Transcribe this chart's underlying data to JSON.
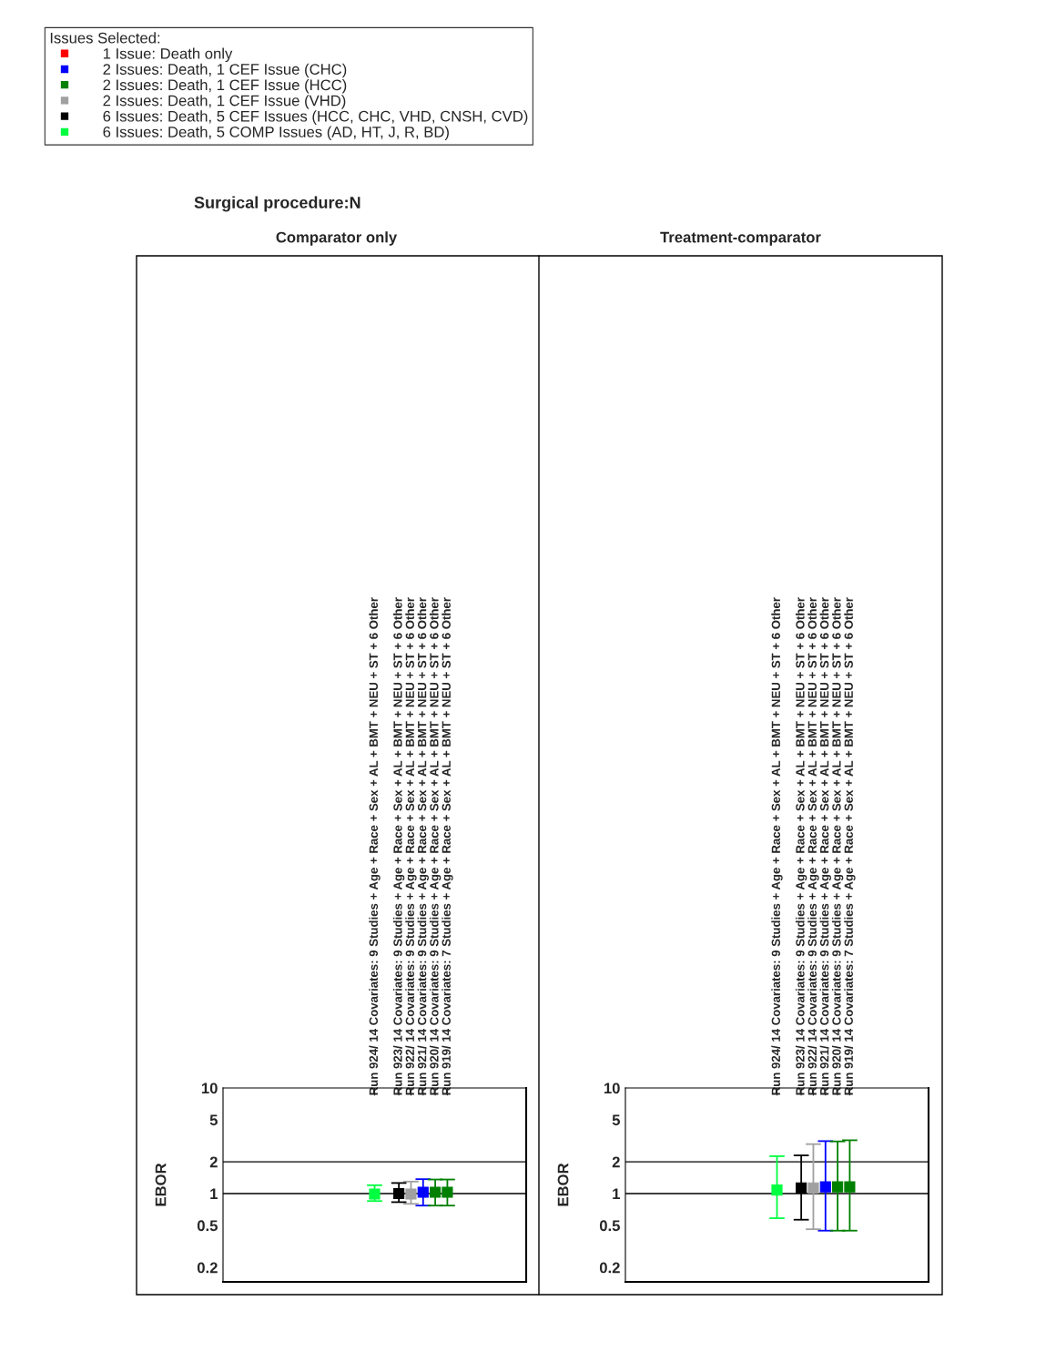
{
  "chart_data": [
    {
      "type": "scatter",
      "title": "Comparator only",
      "annotations": [
        "Surgical procedure:N"
      ],
      "ylabel": "EBOR",
      "legend_title": "Issues Selected:",
      "legend": "top left",
      "marker": "square",
      "log": "y",
      "categories": [
        null,
        null,
        null,
        null,
        null,
        null,
        null,
        null,
        null,
        null,
        null,
        null,
        "Run 924/ 14 Covariates: 9 Studies + Age + Race + Sex + AL + BMT + NEU + ST + 6 Other",
        null,
        "Run 923/ 14 Covariates: 9 Studies + Age + Race + Sex + AL + BMT + NEU + ST + 6 Other",
        "Run 922/ 14 Covariates: 9 Studies + Age + Race + Sex + AL + BMT + NEU + ST + 6 Other",
        "Run 921/ 14 Covariates: 9 Studies + Age + Race + Sex + AL + BMT + NEU + ST + 6 Other",
        "Run 920/ 14 Covariates: 9 Studies + Age + Race + Sex + AL + BMT + NEU + ST + 6 Other",
        "Run 919/ 14 Covariates: 7 Studies + Age + Race + Sex + AL + BMT + NEU + ST + 6 Other",
        null,
        null,
        null,
        null,
        null,
        null
      ],
      "ylim": [
        0.146,
        10
      ],
      "yticks": [
        0.2,
        0.5,
        1,
        2,
        5,
        10
      ],
      "ref_lines": [
        {
          "axis": "y",
          "value": 1,
          "color": "#000000"
        },
        {
          "axis": "y",
          "value": 2,
          "color": "#000000"
        }
      ],
      "series": [
        {
          "name": "1 Issue: Death only",
          "color": "#ff0000",
          "values": [
            null,
            null,
            null,
            null,
            null,
            null,
            null,
            null,
            null,
            null,
            null,
            null,
            null,
            null,
            null,
            null,
            null,
            null,
            null,
            null,
            null,
            null,
            null,
            null,
            null
          ]
        },
        {
          "name": "2 Issues: Death, 1 CEF Issue (CHC)",
          "color": "#0000ff",
          "values": [
            null,
            null,
            null,
            null,
            null,
            null,
            null,
            null,
            null,
            null,
            null,
            null,
            null,
            null,
            null,
            null,
            1.03,
            null,
            null,
            null,
            null,
            null,
            null,
            null,
            null
          ],
          "errors": [
            null,
            null,
            null,
            null,
            null,
            null,
            null,
            null,
            null,
            null,
            null,
            null,
            null,
            null,
            null,
            null,
            [
              0.77,
              1.37
            ],
            null,
            null,
            null,
            null,
            null,
            null,
            null,
            null
          ]
        },
        {
          "name": "2 Issues: Death, 1 CEF Issue (HCC)",
          "color": "#008000",
          "values": [
            null,
            null,
            null,
            null,
            null,
            null,
            null,
            null,
            null,
            null,
            null,
            null,
            null,
            null,
            null,
            null,
            null,
            1.03,
            1.03,
            null,
            null,
            null,
            null,
            null,
            null
          ],
          "errors": [
            null,
            null,
            null,
            null,
            null,
            null,
            null,
            null,
            null,
            null,
            null,
            null,
            null,
            null,
            null,
            null,
            null,
            [
              0.77,
              1.36
            ],
            [
              0.77,
              1.36
            ],
            null,
            null,
            null,
            null,
            null,
            null
          ]
        },
        {
          "name": "2 Issues: Death, 1 CEF Issue (VHD)",
          "color": "#a0a0a0",
          "values": [
            null,
            null,
            null,
            null,
            null,
            null,
            null,
            null,
            null,
            null,
            null,
            null,
            null,
            null,
            null,
            0.99,
            null,
            null,
            null,
            null,
            null,
            null,
            null,
            null,
            null
          ],
          "errors": [
            null,
            null,
            null,
            null,
            null,
            null,
            null,
            null,
            null,
            null,
            null,
            null,
            null,
            null,
            null,
            [
              0.8,
              1.3
            ],
            null,
            null,
            null,
            null,
            null,
            null,
            null,
            null,
            null
          ]
        },
        {
          "name": "6 Issues: Death, 5 CEF Issues (HCC, CHC, VHD, CNSH, CVD)",
          "color": "#000000",
          "values": [
            null,
            null,
            null,
            null,
            null,
            null,
            null,
            null,
            null,
            null,
            null,
            null,
            null,
            null,
            1.0,
            null,
            null,
            null,
            null,
            null,
            null,
            null,
            null,
            null,
            null
          ],
          "errors": [
            null,
            null,
            null,
            null,
            null,
            null,
            null,
            null,
            null,
            null,
            null,
            null,
            null,
            null,
            [
              0.83,
              1.26
            ],
            null,
            null,
            null,
            null,
            null,
            null,
            null,
            null,
            null,
            null
          ]
        },
        {
          "name": "6 Issues: Death, 5 COMP Issues (AD, HT, J, R, BD)",
          "color": "#00ff40",
          "values": [
            null,
            null,
            null,
            null,
            null,
            null,
            null,
            null,
            null,
            null,
            null,
            null,
            0.99,
            null,
            null,
            null,
            null,
            null,
            null,
            null,
            null,
            null,
            null,
            null,
            null
          ],
          "errors": [
            null,
            null,
            null,
            null,
            null,
            null,
            null,
            null,
            null,
            null,
            null,
            null,
            [
              0.85,
              1.2
            ],
            null,
            null,
            null,
            null,
            null,
            null,
            null,
            null,
            null,
            null,
            null,
            null
          ]
        }
      ]
    },
    {
      "type": "scatter",
      "title": "Treatment-comparator",
      "ylabel": "EBOR",
      "marker": "square",
      "log": "y",
      "categories": [
        null,
        null,
        null,
        null,
        null,
        null,
        null,
        null,
        null,
        null,
        null,
        null,
        "Run 924/ 14 Covariates: 9 Studies + Age + Race + Sex + AL + BMT + NEU + ST + 6 Other",
        null,
        "Run 923/ 14 Covariates: 9 Studies + Age + Race + Sex + AL + BMT + NEU + ST + 6 Other",
        "Run 922/ 14 Covariates: 9 Studies + Age + Race + Sex + AL + BMT + NEU + ST + 6 Other",
        "Run 921/ 14 Covariates: 9 Studies + Age + Race + Sex + AL + BMT + NEU + ST + 6 Other",
        "Run 920/ 14 Covariates: 9 Studies + Age + Race + Sex + AL + BMT + NEU + ST + 6 Other",
        "Run 919/ 14 Covariates: 7 Studies + Age + Race + Sex + AL + BMT + NEU + ST + 6 Other",
        null,
        null,
        null,
        null,
        null,
        null
      ],
      "ylim": [
        0.146,
        10
      ],
      "yticks": [
        0.2,
        0.5,
        1,
        2,
        5,
        10
      ],
      "ref_lines": [
        {
          "axis": "y",
          "value": 1,
          "color": "#000000"
        },
        {
          "axis": "y",
          "value": 2,
          "color": "#000000"
        }
      ],
      "series": [
        {
          "color": "#0000ff",
          "values": [
            null,
            null,
            null,
            null,
            null,
            null,
            null,
            null,
            null,
            null,
            null,
            null,
            null,
            null,
            null,
            null,
            1.16,
            null,
            null,
            null,
            null,
            null,
            null,
            null,
            null
          ],
          "errors": [
            null,
            null,
            null,
            null,
            null,
            null,
            null,
            null,
            null,
            null,
            null,
            null,
            null,
            null,
            null,
            null,
            [
              0.446,
              3.14
            ],
            null,
            null,
            null,
            null,
            null,
            null,
            null,
            null
          ]
        },
        {
          "color": "#008000",
          "values": [
            null,
            null,
            null,
            null,
            null,
            null,
            null,
            null,
            null,
            null,
            null,
            null,
            null,
            null,
            null,
            null,
            null,
            1.16,
            1.16,
            null,
            null,
            null,
            null,
            null,
            null
          ],
          "errors": [
            null,
            null,
            null,
            null,
            null,
            null,
            null,
            null,
            null,
            null,
            null,
            null,
            null,
            null,
            null,
            null,
            null,
            [
              0.446,
              3.12
            ],
            [
              0.446,
              3.2
            ],
            null,
            null,
            null,
            null,
            null,
            null
          ]
        },
        {
          "color": "#a0a0a0",
          "values": [
            null,
            null,
            null,
            null,
            null,
            null,
            null,
            null,
            null,
            null,
            null,
            null,
            null,
            null,
            null,
            1.13,
            null,
            null,
            null,
            null,
            null,
            null,
            null,
            null,
            null
          ],
          "errors": [
            null,
            null,
            null,
            null,
            null,
            null,
            null,
            null,
            null,
            null,
            null,
            null,
            null,
            null,
            null,
            [
              0.46,
              2.94
            ],
            null,
            null,
            null,
            null,
            null,
            null,
            null,
            null,
            null
          ]
        },
        {
          "color": "#000000",
          "values": [
            null,
            null,
            null,
            null,
            null,
            null,
            null,
            null,
            null,
            null,
            null,
            null,
            null,
            null,
            1.13,
            null,
            null,
            null,
            null,
            null,
            null,
            null,
            null,
            null,
            null
          ],
          "errors": [
            null,
            null,
            null,
            null,
            null,
            null,
            null,
            null,
            null,
            null,
            null,
            null,
            null,
            null,
            [
              0.566,
              2.3
            ],
            null,
            null,
            null,
            null,
            null,
            null,
            null,
            null,
            null,
            null
          ]
        },
        {
          "color": "#00ff40",
          "values": [
            null,
            null,
            null,
            null,
            null,
            null,
            null,
            null,
            null,
            null,
            null,
            null,
            1.08,
            null,
            null,
            null,
            null,
            null,
            null,
            null,
            null,
            null,
            null,
            null,
            null
          ],
          "errors": [
            null,
            null,
            null,
            null,
            null,
            null,
            null,
            null,
            null,
            null,
            null,
            null,
            [
              0.585,
              2.26
            ],
            null,
            null,
            null,
            null,
            null,
            null,
            null,
            null,
            null,
            null,
            null,
            null
          ]
        }
      ]
    }
  ]
}
